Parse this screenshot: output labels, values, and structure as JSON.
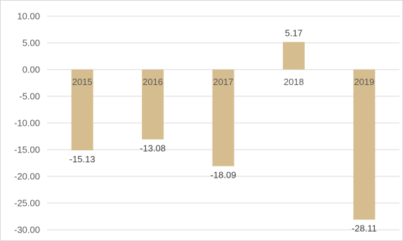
{
  "chart_data": {
    "type": "bar",
    "title": "",
    "xlabel": "",
    "ylabel": "",
    "categories": [
      "2015",
      "2016",
      "2017",
      "2018",
      "2019"
    ],
    "values": [
      -15.13,
      -13.08,
      -18.09,
      5.17,
      -28.11
    ],
    "value_labels": [
      "-15.13",
      "-13.08",
      "-18.09",
      "5.17",
      "-28.11"
    ],
    "ylim": [
      -30,
      10
    ],
    "yticks": [
      10,
      5,
      0,
      -5,
      -10,
      -15,
      -20,
      -25,
      -30
    ],
    "ytick_labels": [
      "10.00",
      "5.00",
      "0.00",
      "-5.00",
      "-10.00",
      "-15.00",
      "-20.00",
      "-25.00",
      "-30.00"
    ],
    "grid": true,
    "legend": "none",
    "colors": {
      "bar": "#d5bd8f",
      "grid": "#d9d9d9",
      "text": "#595959"
    }
  }
}
